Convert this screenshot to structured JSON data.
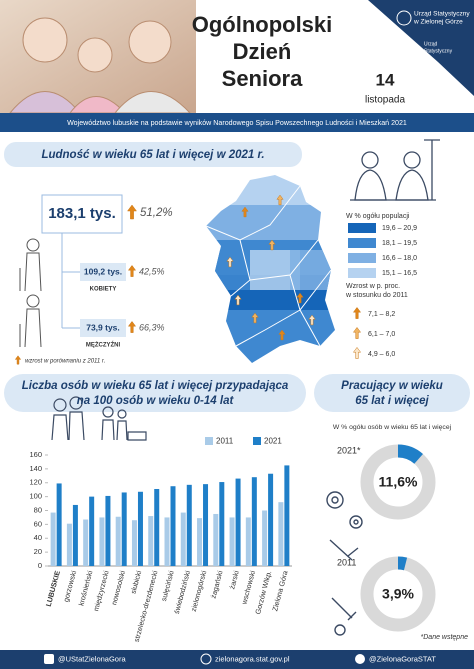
{
  "header": {
    "title_lines": [
      "Ogólnopolski",
      "Dzień",
      "Seniora"
    ],
    "day": "14",
    "month": "listopada",
    "logo_lines": [
      "Urząd Statystyczny",
      "w Zielonej Górze"
    ],
    "anniversary_lines": [
      "Urząd",
      "Statystyczny"
    ]
  },
  "banner": "Województwo lubuskie na podstawie wyników Narodowego Spisu Powszechnego Ludności i Mieszkań 2021",
  "population": {
    "title": "Ludność w wieku 65 lat i więcej w 2021 r.",
    "total": "183,1 tys.",
    "total_growth": "51,2%",
    "women": "109,2 tys.",
    "women_growth": "42,5%",
    "women_label": "KOBIETY",
    "men": "73,9 tys.",
    "men_growth": "66,3%",
    "men_label": "MĘŻCZYŹNI",
    "note": "wzrost w porównaniu z 2011 r."
  },
  "map_legend": {
    "share_title": "W % ogółu populacji",
    "share_classes": [
      {
        "label": "19,6 – 20,9",
        "color": "#1565b8"
      },
      {
        "label": "18,1 – 19,5",
        "color": "#3f88d0"
      },
      {
        "label": "16,6 – 18,0",
        "color": "#7fb0e3"
      },
      {
        "label": "15,1 – 16,5",
        "color": "#b5d2f0"
      }
    ],
    "growth_title_lines": [
      "Wzrost w p. proc.",
      "w stosunku do 2011"
    ],
    "growth_classes": [
      {
        "label": "7,1 – 8,2",
        "color": "#e0861a"
      },
      {
        "label": "6,1 – 7,0",
        "color": "#f0b462"
      },
      {
        "label": "4,9 – 6,0",
        "color": "#fbe6c8"
      }
    ]
  },
  "chart_data": [
    {
      "type": "bar",
      "title_lines": [
        "Liczba osób w wieku 65 lat i więcej przypadająca",
        "na 100 osób w wieku 0-14 lat"
      ],
      "categories": [
        "LUBUSKIE",
        "gorzowski",
        "krośnieński",
        "międzyrzecki",
        "nowosolski",
        "słubicki",
        "strzelecko-drezdenecki",
        "sulęciński",
        "świebodziński",
        "zielonogórski",
        "żagański",
        "żarski",
        "wschowski",
        "Gorzów Wlkp.",
        "Zielona Góra"
      ],
      "series": [
        {
          "name": "2011",
          "color": "#a9cbe8",
          "values": [
            77,
            61,
            67,
            70,
            71,
            66,
            72,
            70,
            77,
            69,
            75,
            70,
            70,
            80,
            92
          ]
        },
        {
          "name": "2021",
          "color": "#1f7fc8",
          "values": [
            119,
            88,
            100,
            101,
            106,
            107,
            111,
            115,
            117,
            118,
            121,
            126,
            128,
            133,
            145
          ]
        }
      ],
      "ylim": [
        0,
        160
      ],
      "yticks": [
        0,
        20,
        40,
        60,
        80,
        100,
        120,
        140,
        160
      ]
    },
    {
      "type": "donut",
      "title_lines": [
        "Pracujący w wieku",
        "65 lat i więcej"
      ],
      "subtitle": "W % ogółu osób w wieku 65 lat i więcej",
      "categories": [
        "2021*",
        "2011"
      ],
      "values": [
        11.6,
        3.9
      ],
      "value_labels": [
        "11,6%",
        "3,9%"
      ],
      "color": "#1f7fc8",
      "track_color": "#d9d9d9",
      "note": "*Dane wstępne"
    }
  ],
  "footer": {
    "facebook": "@UStatZielonaGora",
    "website": "zielonagora.stat.gov.pl",
    "twitter": "@ZielonaGoraSTAT"
  }
}
